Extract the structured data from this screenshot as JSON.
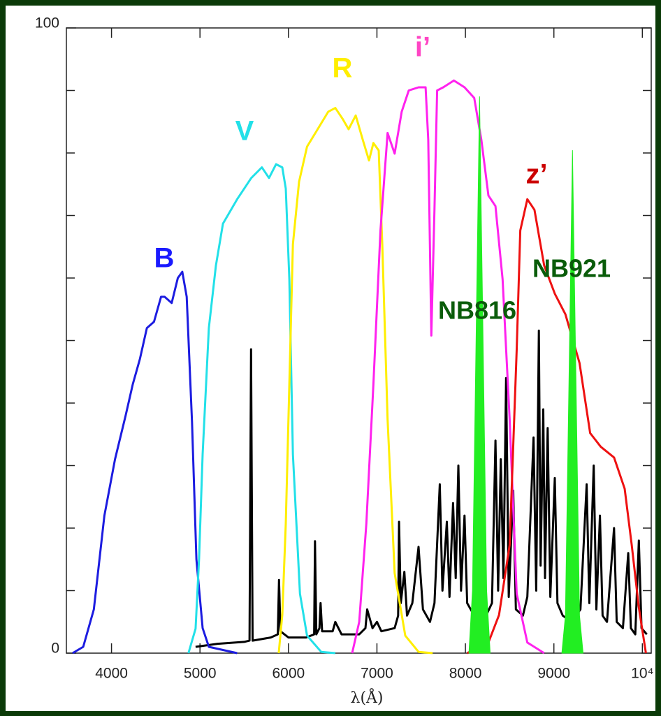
{
  "chart_data": {
    "type": "line",
    "x_label": "λ(Å)",
    "xlim": [
      3490,
      10100
    ],
    "ylim": [
      0,
      100
    ],
    "xticks": [
      4000,
      5000,
      6000,
      7000,
      8000,
      9000,
      {
        "value": 10000,
        "label": "10⁴"
      }
    ],
    "yticks": [
      0,
      100
    ],
    "yminorticks": [
      10,
      20,
      30,
      40,
      50,
      60,
      70,
      80,
      90
    ],
    "series": [
      {
        "color": "#000000",
        "x": [
          4950,
          5200,
          5500,
          5560,
          5577,
          5595,
          5800,
          5880,
          5893,
          5910,
          6000,
          6200,
          6290,
          6300,
          6315,
          6350,
          6363,
          6380,
          6500,
          6530,
          6600,
          6800,
          6870,
          6890,
          6950,
          7000,
          7050,
          7200,
          7240,
          7250,
          7270,
          7310,
          7340,
          7400,
          7470,
          7520,
          7600,
          7650,
          7710,
          7740,
          7790,
          7820,
          7860,
          7890,
          7920,
          7950,
          7990,
          8020,
          8100,
          8200,
          8300,
          8340,
          8370,
          8400,
          8430,
          8460,
          8490,
          8540,
          8570,
          8650,
          8700,
          8770,
          8800,
          8830,
          8850,
          8880,
          8900,
          8930,
          8960,
          9010,
          9040,
          9100,
          9200,
          9300,
          9370,
          9400,
          9450,
          9480,
          9520,
          9550,
          9600,
          9680,
          9710,
          9780,
          9840,
          9870,
          9920,
          9960,
          9990,
          10050
        ],
        "values": [
          1,
          1.5,
          1.8,
          2,
          48.6,
          2,
          2.5,
          3,
          11.7,
          3.5,
          2.5,
          2.5,
          3,
          17.9,
          3,
          4,
          8,
          3.5,
          3.5,
          5,
          3,
          3,
          4,
          7,
          4,
          5,
          3.5,
          4,
          6,
          21,
          8,
          13,
          6,
          8,
          17,
          7,
          5,
          8,
          27,
          10,
          21,
          9,
          24,
          12,
          30,
          10,
          22,
          8,
          6,
          5,
          8,
          34,
          10,
          31,
          12,
          44,
          9,
          26,
          7,
          6,
          9,
          34.5,
          10,
          51.6,
          14,
          39,
          12,
          36,
          9,
          28,
          8,
          6,
          5,
          7,
          27,
          8,
          30,
          7,
          22,
          6,
          5,
          20,
          5,
          4,
          16,
          4,
          3,
          18,
          4,
          3
        ]
      },
      {
        "name": "B",
        "color": "#1c1ce0",
        "label_color": "#1a1aff",
        "x": [
          3560,
          3680,
          3800,
          3920,
          4040,
          4160,
          4240,
          4320,
          4400,
          4480,
          4560,
          4600,
          4680,
          4750,
          4800,
          4850,
          4910,
          4960,
          5030,
          5100,
          5420
        ],
        "values": [
          0,
          1,
          7,
          22,
          31,
          38,
          43,
          47,
          52,
          53,
          57,
          57,
          56,
          60,
          61,
          57,
          37,
          15,
          4,
          1,
          0
        ]
      },
      {
        "name": "V",
        "color": "#22e0e8",
        "label_color": "#22e0e8",
        "x": [
          4870,
          4950,
          4990,
          5030,
          5100,
          5180,
          5260,
          5420,
          5580,
          5700,
          5780,
          5860,
          5930,
          5970,
          6010,
          6050,
          6130,
          6210,
          6370,
          6530
        ],
        "values": [
          0,
          3.9,
          15.1,
          31.8,
          52,
          62,
          68.7,
          72.6,
          76,
          77.7,
          76,
          78.2,
          77.7,
          74.3,
          59.8,
          31.8,
          9.5,
          2.8,
          0.2,
          0
        ]
      },
      {
        "name": "R",
        "color": "#ffee00",
        "label_color": "#ffee00",
        "x": [
          5890,
          5930,
          5970,
          6010,
          6050,
          6120,
          6210,
          6330,
          6450,
          6530,
          6610,
          6680,
          6760,
          6840,
          6910,
          6960,
          7020,
          7060,
          7120,
          7200,
          7320,
          7470,
          7630
        ],
        "values": [
          0,
          6.1,
          20.7,
          43,
          65.4,
          75.4,
          81,
          83.8,
          86.6,
          87.2,
          85.5,
          83.8,
          86,
          82.1,
          78.8,
          81.6,
          80.4,
          65.4,
          37.4,
          12.8,
          2.8,
          0.2,
          0
        ]
      },
      {
        "name": "i’",
        "color": "#ff22ee",
        "label_color": "#ff44c4",
        "x": [
          6720,
          6800,
          6880,
          6960,
          7040,
          7120,
          7200,
          7280,
          7360,
          7470,
          7550,
          7580,
          7615,
          7650,
          7680,
          7750,
          7870,
          7990,
          8100,
          8180,
          8260,
          8340,
          8420,
          8500,
          8580,
          8700,
          8890
        ],
        "values": [
          0,
          5,
          20.7,
          43,
          67.6,
          83.2,
          79.9,
          86.6,
          90,
          90.5,
          90.5,
          82.1,
          50.8,
          71,
          90,
          90.5,
          91.6,
          90.5,
          88.8,
          82.1,
          73.2,
          71.5,
          59.8,
          37.4,
          9.5,
          1.7,
          0
        ]
      },
      {
        "name": "z’",
        "color": "#ee1111",
        "label_color": "#cc0000",
        "x": [
          8020,
          8260,
          8380,
          8500,
          8580,
          8620,
          8700,
          8780,
          8890,
          9010,
          9130,
          9290,
          9410,
          9530,
          9680,
          9800,
          9880,
          9960,
          10040
        ],
        "values": [
          0,
          1.7,
          6.1,
          17.3,
          48.6,
          67.6,
          72.6,
          70.9,
          62,
          57.5,
          54.2,
          46.4,
          35.2,
          33,
          31.3,
          26.3,
          17.3,
          7.3,
          0
        ]
      },
      {
        "name": "NB816",
        "color": "#22ee22",
        "label_color": "#0a5c0a",
        "fill": true,
        "x": [
          8040,
          8080,
          8160,
          8240,
          8280
        ],
        "values": [
          0,
          10,
          89,
          10,
          0
        ]
      },
      {
        "name": "NB921",
        "color": "#22ee22",
        "label_color": "#0a5c0a",
        "fill": true,
        "x": [
          9090,
          9130,
          9210,
          9290,
          9330
        ],
        "values": [
          0,
          6,
          80.4,
          6,
          0
        ]
      }
    ]
  }
}
